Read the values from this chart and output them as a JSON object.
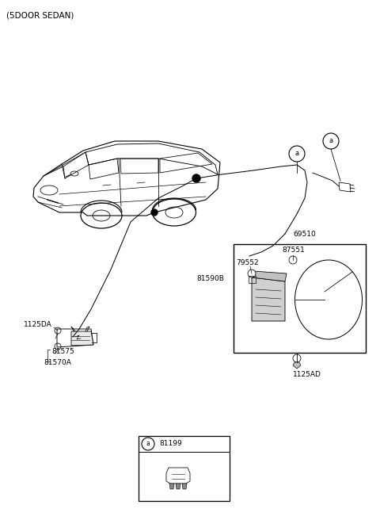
{
  "title": "(5DOOR SEDAN)",
  "background_color": "#ffffff",
  "fig_width": 4.8,
  "fig_height": 6.56,
  "dpi": 100,
  "label_69510": "69510",
  "label_87551": "87551",
  "label_79552": "79552",
  "label_1125AD": "1125AD",
  "label_1125DA": "1125DA",
  "label_81575": "81575",
  "label_81570A": "81570A",
  "label_81590B": "81590B",
  "label_81199": "81199"
}
